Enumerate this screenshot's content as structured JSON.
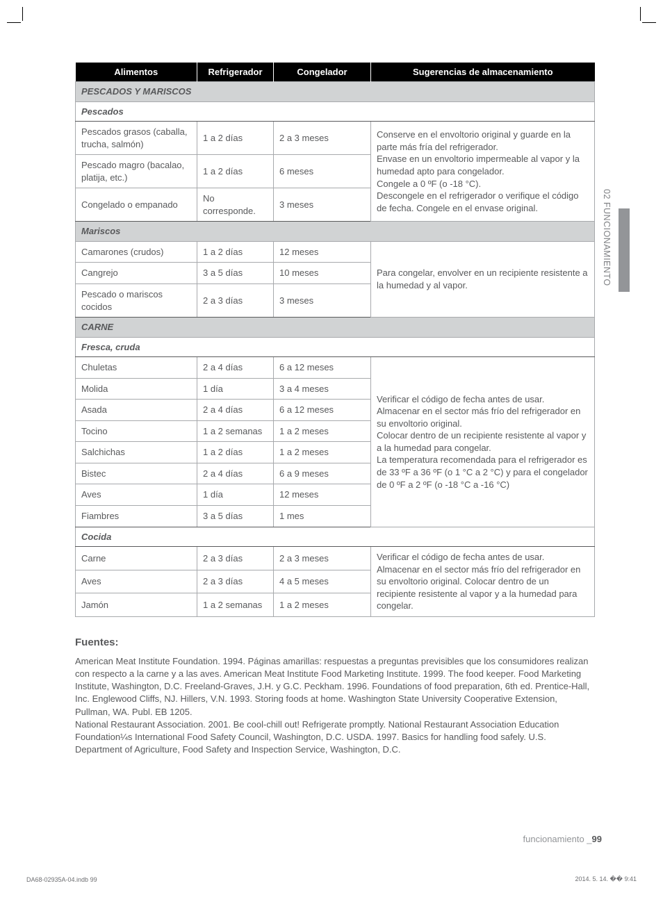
{
  "cropMarks": true,
  "table": {
    "headers": [
      "Alimentos",
      "Refrigerador",
      "Congelador",
      "Sugerencias de almacenamiento"
    ],
    "sections": [
      {
        "title": "PESCADOS Y MARISCOS",
        "style": "dark",
        "subsections": [
          {
            "title": "Pescados",
            "style": "light",
            "group_sugg": "Conserve en el envoltorio original y guarde en la parte más fría del refrigerador.\nEnvase en un envoltorio impermeable al vapor y la humedad apto para congelador.\nCongele a 0 ºF (o -18 °C).\nDescongele en el refrigerador o verifique el código de fecha. Congele en el envase original.",
            "rows": [
              {
                "a": "Pescados grasos (caballa, trucha, salmón)",
                "r": "1 a 2 días",
                "c": "2 a 3 meses"
              },
              {
                "a": "Pescado magro (bacalao, platija, etc.)",
                "r": "1 a 2 días",
                "c": "6 meses"
              },
              {
                "a": "Congelado o empanado",
                "r": "No corresponde.",
                "c": "3 meses"
              }
            ]
          },
          {
            "title": "Mariscos",
            "style": "dark",
            "group_sugg": "Para congelar, envolver en un recipiente resistente a la humedad y al vapor.",
            "rows": [
              {
                "a": "Camarones (crudos)",
                "r": "1 a 2 días",
                "c": "12 meses"
              },
              {
                "a": "Cangrejo",
                "r": "3 a 5 días",
                "c": "10 meses"
              },
              {
                "a": "Pescado o mariscos cocidos",
                "r": "2 a 3 días",
                "c": "3 meses"
              }
            ]
          }
        ]
      },
      {
        "title": "CARNE",
        "style": "dark",
        "subsections": [
          {
            "title": "Fresca, cruda",
            "style": "light",
            "group_sugg": "Verificar el código de fecha antes de usar. Almacenar en el sector más frío del refrigerador en su envoltorio original.\nColocar dentro de un recipiente resistente al vapor y a la humedad para congelar.\nLa temperatura recomendada para el refrigerador es de 33 ºF a 36 ºF (o 1 °C a 2 °C) y para el congelador de 0 ºF a 2 ºF (o -18 °C a -16 °C)",
            "rows": [
              {
                "a": "Chuletas",
                "r": "2 a 4 días",
                "c": "6 a 12 meses"
              },
              {
                "a": "Molida",
                "r": "1 día",
                "c": "3 a 4 meses"
              },
              {
                "a": "Asada",
                "r": "2 a 4 días",
                "c": "6 a 12 meses"
              },
              {
                "a": "Tocino",
                "r": "1 a 2 semanas",
                "c": "1 a 2 meses"
              },
              {
                "a": "Salchichas",
                "r": "1 a 2 días",
                "c": "1 a 2 meses"
              },
              {
                "a": "Bistec",
                "r": "2 a 4 días",
                "c": "6 a 9 meses"
              },
              {
                "a": "Aves",
                "r": "1 día",
                "c": "12 meses"
              },
              {
                "a": "Fiambres",
                "r": "3 a 5 días",
                "c": "1 mes"
              }
            ]
          },
          {
            "title": "Cocida",
            "style": "light",
            "group_sugg": "Verificar el código de fecha antes de usar. Almacenar en el sector más frío del refrigerador en su envoltorio original. Colocar dentro de un recipiente resistente al vapor y a la humedad para congelar.",
            "rows": [
              {
                "a": "Carne",
                "r": "2 a 3 días",
                "c": "2 a 3 meses"
              },
              {
                "a": "Aves",
                "r": "2 a 3 días",
                "c": "4 a 5 meses"
              },
              {
                "a": "Jamón",
                "r": "1 a 2 semanas",
                "c": "1 a 2 meses"
              }
            ]
          }
        ]
      }
    ]
  },
  "fuentes": {
    "heading": "Fuentes:",
    "body": "American Meat Institute Foundation. 1994. Páginas amarillas: respuestas a preguntas previsibles que los consumidores realizan con respecto a la carne y a las aves. American Meat Institute Food Marketing Institute. 1999. The food keeper. Food Marketing Institute, Washington, D.C. Freeland-Graves, J.H. y G.C. Peckham. 1996. Foundations of food preparation, 6th ed. Prentice-Hall, Inc. Englewood Cliffs, NJ. Hillers, V.N. 1993. Storing foods at home. Washington State University Cooperative Extension, Pullman, WA. Publ. EB 1205.\nNational Restaurant Association. 2001. Be cool-chill out! Refrigerate promptly. National Restaurant Association Education Foundation¼s International Food Safety Council, Washington, D.C. USDA. 1997. Basics for handling food safely. U.S. Department of Agriculture, Food Safety and Inspection Service, Washington, D.C."
  },
  "sideTab": "02  FUNCIONAMIENTO",
  "footer": {
    "right_label": "funcionamiento _",
    "right_page": "99",
    "left": "DA68-02935A-04.indb   99",
    "time": "2014. 5. 14.   �� 9:41"
  }
}
